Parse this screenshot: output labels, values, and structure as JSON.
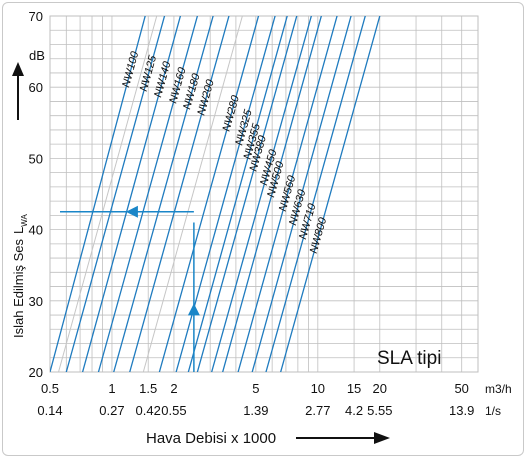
{
  "colors": {
    "line": "#1f7bbf",
    "grid": "#bfbfbf",
    "marker": "#1a86c8",
    "faint_line": "#c6c6c6"
  },
  "chart_data": {
    "type": "line",
    "title": "SLA tipi",
    "ylabel_main": "Islah Edilmiş Ses",
    "ylabel_symbol": "L",
    "ylabel_sub": "WA",
    "y_unit": "dB",
    "y_arrow_icon": "arrow-up-icon",
    "xlabel": "Hava Debisi x 1000",
    "x_arrow_icon": "arrow-right-icon",
    "xscale": "log",
    "xlim": [
      0.5,
      60
    ],
    "ylim": [
      20,
      70
    ],
    "grid": true,
    "y_ticks": [
      "20",
      "30",
      "40",
      "50",
      "60",
      "70"
    ],
    "x_unit_m3h": "m3/h",
    "x_unit_ls": "1/s",
    "x_ticks_m3h": [
      {
        "value": 0.5,
        "label": "0.5"
      },
      {
        "value": 1,
        "label": "1"
      },
      {
        "value": 1.5,
        "label": "1.5"
      },
      {
        "value": 2,
        "label": "2"
      },
      {
        "value": 5,
        "label": "5"
      },
      {
        "value": 10,
        "label": "10"
      },
      {
        "value": 15,
        "label": "15"
      },
      {
        "value": 20,
        "label": "20"
      },
      {
        "value": 50,
        "label": "50"
      }
    ],
    "x_ticks_ls": [
      {
        "value": 0.5,
        "label": "0.14"
      },
      {
        "value": 1,
        "label": "0.27"
      },
      {
        "value": 1.5,
        "label": "0.42"
      },
      {
        "value": 2,
        "label": "0.55"
      },
      {
        "value": 5,
        "label": "1.39"
      },
      {
        "value": 10,
        "label": "2.77"
      },
      {
        "value": 15,
        "label": "4.2"
      },
      {
        "value": 20,
        "label": "5.55"
      },
      {
        "value": 50,
        "label": "13.9"
      }
    ],
    "series": [
      {
        "name": "NW100",
        "x20": 0.5,
        "x70": 1.45
      },
      {
        "name": "NW125",
        "x20": 0.6,
        "x70": 1.8
      },
      {
        "name": "NW140",
        "x20": 0.72,
        "x70": 2.15
      },
      {
        "name": "NW160",
        "x20": 0.86,
        "x70": 2.6
      },
      {
        "name": "NW180",
        "x20": 1.02,
        "x70": 3.1
      },
      {
        "name": "NW200",
        "x20": 1.22,
        "x70": 3.7
      },
      {
        "name": "NW280",
        "x20": 1.7,
        "x70": 5.15
      },
      {
        "name": "NW325",
        "x20": 2.05,
        "x70": 6.2
      },
      {
        "name": "NW355",
        "x20": 2.35,
        "x70": 7.1
      },
      {
        "name": "NW380",
        "x20": 2.6,
        "x70": 7.9
      },
      {
        "name": "NW450",
        "x20": 3.05,
        "x70": 9.3
      },
      {
        "name": "NW500",
        "x20": 3.45,
        "x70": 10.4
      },
      {
        "name": "NW560",
        "x20": 4.1,
        "x70": 12.4
      },
      {
        "name": "NW630",
        "x20": 4.8,
        "x70": 14.5
      },
      {
        "name": "NW710",
        "x20": 5.6,
        "x70": 17
      },
      {
        "name": "NW800",
        "x20": 6.6,
        "x70": 20
      }
    ],
    "faint_series": [
      {
        "x20": 0.55,
        "x70": 1.65
      },
      {
        "x20": 1.42,
        "x70": 4.3
      }
    ],
    "example": {
      "airflow": 2.5,
      "level": 42.5
    }
  }
}
